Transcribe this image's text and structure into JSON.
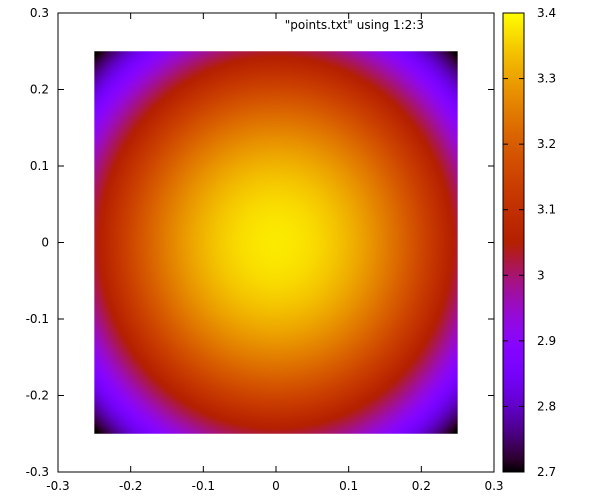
{
  "chart_data": {
    "type": "heatmap",
    "title": "",
    "key_label": "\"points.txt\" using 1:2:3",
    "xlabel": "",
    "ylabel": "",
    "xlim": [
      -0.3,
      0.3
    ],
    "ylim": [
      -0.3,
      0.3
    ],
    "x_ticks": [
      "-0.3",
      "-0.2",
      "-0.1",
      "0",
      "0.1",
      "0.2",
      "0.3"
    ],
    "y_ticks": [
      "-0.3",
      "-0.2",
      "-0.1",
      "0",
      "0.1",
      "0.2",
      "0.3"
    ],
    "data_extent": {
      "x": [
        -0.25,
        0.25
      ],
      "y": [
        -0.25,
        0.25
      ]
    },
    "value_function": {
      "form": "center_minus_k_r2",
      "center_value": 3.38,
      "k": 5.6,
      "center": [
        0,
        0
      ]
    },
    "colorbar": {
      "range": [
        2.7,
        3.4
      ],
      "ticks": [
        "2.7",
        "2.8",
        "2.9",
        "3",
        "3.1",
        "3.2",
        "3.3",
        "3.4"
      ],
      "palette": "gnuplot default (rgbformulae 7,5,15)"
    },
    "grid": false,
    "legend_position": "top-right"
  }
}
